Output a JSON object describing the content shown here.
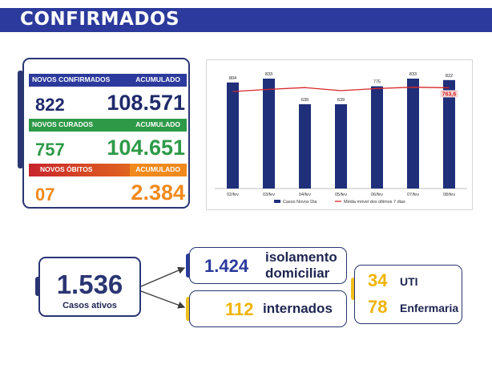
{
  "header": {
    "title": "CONFIRMADOS"
  },
  "summary": {
    "confirmados": {
      "label": "NOVOS CONFIRMADOS",
      "acc_label": "ACUMULADO",
      "new": "822",
      "total": "108.571"
    },
    "curados": {
      "label": "NOVOS CURADOS",
      "acc_label": "ACUMULADO",
      "new": "757",
      "total": "104.651"
    },
    "obitos": {
      "label": "NOVOS ÓBITOS",
      "acc_label": "ACUMULADO",
      "new": "07",
      "total": "2.384"
    }
  },
  "chart_data": {
    "type": "bar",
    "categories": [
      "02/fev",
      "03/fev",
      "04/fev",
      "05/fev",
      "06/fev",
      "07/fev",
      "08/fev"
    ],
    "series": [
      {
        "name": "Casos Novos Dia",
        "values": [
          804,
          833,
          639,
          639,
          775,
          833,
          822
        ]
      },
      {
        "name": "Média móvel dos últimos 7 dias",
        "values": [
          735,
          752,
          765,
          742,
          758,
          768,
          763.6
        ]
      }
    ],
    "value_labels": [
      "804",
      "833",
      "639",
      "639",
      "775",
      "833",
      "822"
    ],
    "highlight_label": "763,6",
    "ylim": [
      0,
      900
    ],
    "colors": {
      "bar": "#1f2f7a",
      "line": "#d62728"
    }
  },
  "active": {
    "total": "1.536",
    "label": "Casos ativos",
    "isolamento_value": "1.424",
    "isolamento_line1": "isolamento",
    "isolamento_line2": "domiciliar",
    "internados_value": "112",
    "internados_label": "internados",
    "uti_value": "34",
    "uti_label": "UTI",
    "enfermaria_value": "78",
    "enfermaria_label": "Enfermaria"
  }
}
